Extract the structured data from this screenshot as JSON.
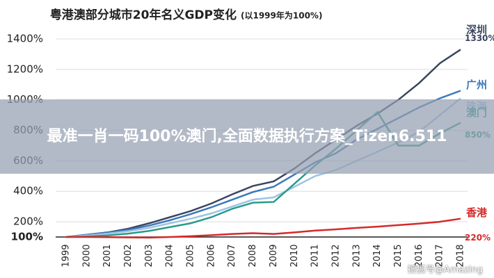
{
  "chart_data": {
    "type": "line",
    "title": "粤港澳部分城市20年名义GDP变化",
    "subtitle": "(以1999年为100%)",
    "categories": [
      "1999",
      "2000",
      "2001",
      "2002",
      "2003",
      "2004",
      "2005",
      "2006",
      "2007",
      "2008",
      "2009",
      "2010",
      "2011",
      "2012",
      "2013",
      "2014",
      "2015",
      "2016",
      "2017",
      "2018"
    ],
    "series": [
      {
        "name": "深圳",
        "color": "#3a4560",
        "values": [
          100,
          115,
          130,
          155,
          190,
          230,
          270,
          320,
          380,
          435,
          465,
          550,
          650,
          740,
          830,
          910,
          1000,
          1110,
          1240,
          1330
        ],
        "value_labels": [
          null,
          null,
          null,
          null,
          null,
          null,
          null,
          null,
          null,
          null,
          null,
          null,
          null,
          null,
          null,
          null,
          null,
          null,
          null,
          "1330%"
        ]
      },
      {
        "name": "广州",
        "color": "#3b78b8",
        "values": [
          100,
          115,
          128,
          148,
          175,
          210,
          250,
          295,
          345,
          395,
          430,
          510,
          590,
          650,
          740,
          810,
          880,
          950,
          1010,
          1060
        ]
      },
      {
        "name": "珠海",
        "color": "#9cc4e4",
        "values": [
          100,
          110,
          122,
          138,
          160,
          190,
          220,
          255,
          300,
          345,
          360,
          430,
          500,
          540,
          600,
          660,
          720,
          790,
          900,
          1010
        ]
      },
      {
        "name": "澳门",
        "color": "#2a9a8a",
        "values": [
          100,
          103,
          110,
          122,
          140,
          165,
          190,
          230,
          285,
          325,
          330,
          450,
          570,
          680,
          800,
          920,
          700,
          700,
          780,
          850
        ],
        "value_labels": [
          null,
          null,
          null,
          null,
          null,
          null,
          null,
          null,
          null,
          null,
          null,
          null,
          null,
          null,
          null,
          null,
          null,
          null,
          null,
          "850%"
        ]
      },
      {
        "name": "香港",
        "color": "#d42a2a",
        "values": [
          100,
          100,
          99,
          97,
          96,
          100,
          105,
          112,
          120,
          125,
          120,
          130,
          142,
          150,
          160,
          168,
          178,
          188,
          200,
          220
        ],
        "value_labels": [
          null,
          null,
          null,
          null,
          null,
          null,
          null,
          null,
          null,
          null,
          null,
          null,
          null,
          null,
          null,
          null,
          null,
          null,
          null,
          "220%"
        ]
      }
    ],
    "ylim": [
      100,
      1450
    ],
    "yticks": [
      {
        "value": 100,
        "label": "100%"
      },
      {
        "value": 200,
        "label": "200%"
      },
      {
        "value": 400,
        "label": "400%"
      },
      {
        "value": 600,
        "label": "600%"
      },
      {
        "value": 800,
        "label": "800%"
      },
      {
        "value": 1000,
        "label": "1000%"
      },
      {
        "value": 1200,
        "label": "1200%"
      },
      {
        "value": 1400,
        "label": "1400%"
      }
    ],
    "grid": true
  },
  "overlay": {
    "banner": "最准一肖一码100%澳门,全面数据执行方案_Tizen6.511",
    "watermark": "搜狐号@Amazing"
  }
}
